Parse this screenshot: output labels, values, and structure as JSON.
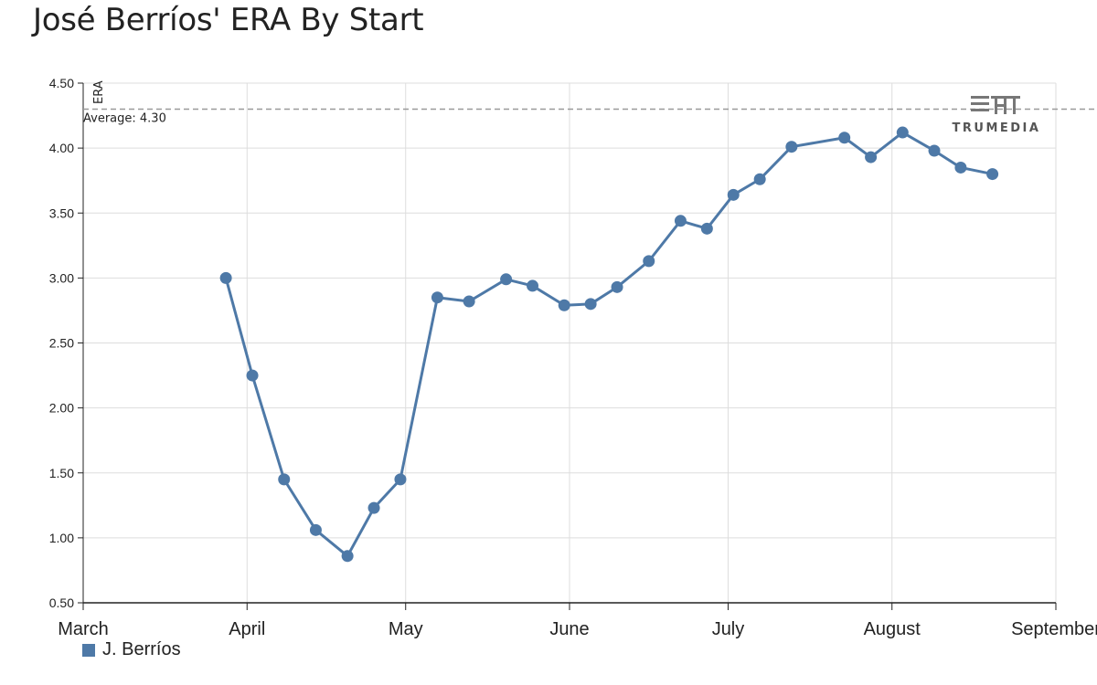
{
  "title": "José Berríos' ERA By Start",
  "colors": {
    "series": "#4e79a7",
    "grid": "#dddddd",
    "axis": "#222222",
    "average": "#999999"
  },
  "logo": {
    "text": "TRUMEDIA",
    "icon": "trumedia-logo-icon"
  },
  "legend": {
    "label": "J. Berríos"
  },
  "average": {
    "label": "Average: 4.30",
    "value": 4.3
  },
  "chart_data": {
    "type": "line",
    "title": "José Berríos' ERA By Start",
    "ylabel": "ERA",
    "xlabel": "",
    "ylim": [
      0.5,
      4.5
    ],
    "yticks": [
      "0.50",
      "1.00",
      "1.50",
      "2.00",
      "2.50",
      "3.00",
      "3.50",
      "4.00",
      "4.50"
    ],
    "xlim": [
      "2019-03-01",
      "2019-09-01"
    ],
    "xticks": [
      {
        "label": "March",
        "date": "2019-03-01"
      },
      {
        "label": "April",
        "date": "2019-04-01"
      },
      {
        "label": "May",
        "date": "2019-05-01"
      },
      {
        "label": "June",
        "date": "2019-06-01"
      },
      {
        "label": "July",
        "date": "2019-07-01"
      },
      {
        "label": "August",
        "date": "2019-08-01"
      },
      {
        "label": "September",
        "date": "2019-09-01"
      }
    ],
    "grid": true,
    "legend_position": "bottom-left",
    "series": [
      {
        "name": "J. Berríos",
        "points": [
          {
            "x": "2019-03-28",
            "y": 3.0
          },
          {
            "x": "2019-04-02",
            "y": 2.25
          },
          {
            "x": "2019-04-08",
            "y": 1.45
          },
          {
            "x": "2019-04-14",
            "y": 1.06
          },
          {
            "x": "2019-04-20",
            "y": 0.86
          },
          {
            "x": "2019-04-25",
            "y": 1.23
          },
          {
            "x": "2019-04-30",
            "y": 1.45
          },
          {
            "x": "2019-05-07",
            "y": 2.85
          },
          {
            "x": "2019-05-13",
            "y": 2.82
          },
          {
            "x": "2019-05-20",
            "y": 2.99
          },
          {
            "x": "2019-05-25",
            "y": 2.94
          },
          {
            "x": "2019-05-31",
            "y": 2.79
          },
          {
            "x": "2019-06-05",
            "y": 2.8
          },
          {
            "x": "2019-06-10",
            "y": 2.93
          },
          {
            "x": "2019-06-16",
            "y": 3.13
          },
          {
            "x": "2019-06-22",
            "y": 3.44
          },
          {
            "x": "2019-06-27",
            "y": 3.38
          },
          {
            "x": "2019-07-02",
            "y": 3.64
          },
          {
            "x": "2019-07-07",
            "y": 3.76
          },
          {
            "x": "2019-07-13",
            "y": 4.01
          },
          {
            "x": "2019-07-23",
            "y": 4.08
          },
          {
            "x": "2019-07-28",
            "y": 3.93
          },
          {
            "x": "2019-08-03",
            "y": 4.12
          },
          {
            "x": "2019-08-09",
            "y": 3.98
          },
          {
            "x": "2019-08-14",
            "y": 3.85
          },
          {
            "x": "2019-08-20",
            "y": 3.8
          }
        ]
      }
    ]
  }
}
